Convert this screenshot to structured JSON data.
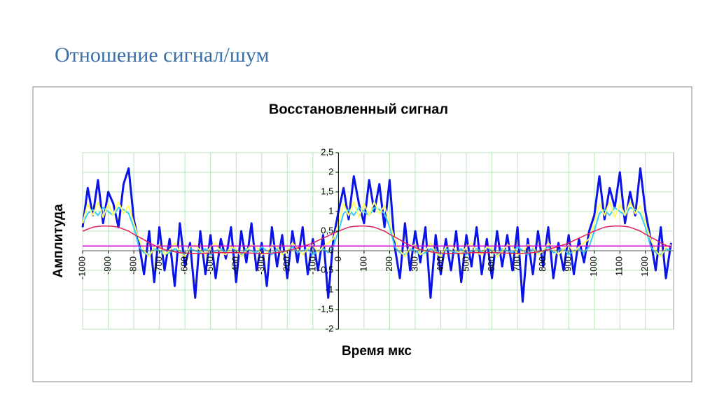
{
  "title": "Отношение сигнал/шум",
  "chart_data": {
    "type": "line",
    "title": "Восстановленный сигнал",
    "x_label": "Время мкс",
    "y_label": "Амплитуда",
    "xlim": [
      -1000,
      1310
    ],
    "ylim": [
      -2,
      2.5
    ],
    "xticks": [
      -1000,
      -900,
      -800,
      -700,
      -600,
      -500,
      -400,
      -300,
      -200,
      -100,
      0,
      100,
      200,
      300,
      400,
      500,
      600,
      700,
      800,
      900,
      1000,
      1100,
      1200
    ],
    "yticks": [
      {
        "value": 2.5,
        "label": "2,5"
      },
      2,
      {
        "value": 1.5,
        "label": "1,5"
      },
      1,
      {
        "value": 0.5,
        "label": "0,5"
      },
      0,
      {
        "value": -0.5,
        "label": "-0,5"
      },
      -1,
      {
        "value": -1.5,
        "label": "-1,5"
      },
      -2
    ],
    "grid": true,
    "x": [
      -1000,
      -980,
      -960,
      -940,
      -920,
      -900,
      -880,
      -860,
      -840,
      -820,
      -800,
      -780,
      -760,
      -740,
      -720,
      -700,
      -680,
      -660,
      -640,
      -620,
      -600,
      -580,
      -560,
      -540,
      -520,
      -500,
      -480,
      -460,
      -440,
      -420,
      -400,
      -380,
      -360,
      -340,
      -320,
      -300,
      -280,
      -260,
      -240,
      -220,
      -200,
      -180,
      -160,
      -140,
      -120,
      -100,
      -80,
      -60,
      -40,
      -20,
      0,
      20,
      40,
      60,
      80,
      100,
      120,
      140,
      160,
      180,
      200,
      220,
      240,
      260,
      280,
      300,
      320,
      340,
      360,
      380,
      400,
      420,
      440,
      460,
      480,
      500,
      520,
      540,
      560,
      580,
      600,
      620,
      640,
      660,
      680,
      700,
      720,
      740,
      760,
      780,
      800,
      820,
      840,
      860,
      880,
      900,
      920,
      940,
      960,
      980,
      1000,
      1020,
      1040,
      1060,
      1080,
      1100,
      1120,
      1140,
      1160,
      1180,
      1200,
      1220,
      1240,
      1260,
      1280,
      1300
    ],
    "series": [
      {
        "color": "#0a14e6",
        "width": 3,
        "values": [
          0.6,
          1.6,
          0.9,
          1.8,
          0.7,
          1.5,
          1.2,
          0.6,
          1.7,
          2.1,
          0.8,
          0.2,
          -0.6,
          0.5,
          -0.8,
          0.6,
          -0.5,
          0.3,
          -0.9,
          0.7,
          -0.4,
          0.2,
          -1.2,
          0.5,
          -0.6,
          0.4,
          -0.7,
          0.3,
          -0.2,
          0.6,
          -0.8,
          0.5,
          -0.3,
          0.7,
          -0.5,
          0.2,
          -0.9,
          0.6,
          -0.4,
          0.4,
          -0.7,
          0.5,
          -0.3,
          0.6,
          -0.6,
          0.3,
          -0.5,
          0.4,
          -1.2,
          0.3,
          1.0,
          1.6,
          0.8,
          1.9,
          1.2,
          0.7,
          1.8,
          1.0,
          1.7,
          0.6,
          1.8,
          0.1,
          -0.7,
          0.7,
          -0.5,
          0.5,
          -0.3,
          0.6,
          -1.2,
          0.4,
          -0.6,
          0.3,
          -0.5,
          0.5,
          -0.8,
          0.4,
          -0.4,
          0.6,
          -0.6,
          0.3,
          -0.7,
          0.5,
          -0.4,
          0.4,
          -0.5,
          0.6,
          -1.3,
          0.3,
          -0.6,
          0.5,
          -0.4,
          0.6,
          -0.7,
          0.2,
          -0.5,
          0.4,
          -0.6,
          0.3,
          -0.3,
          0.5,
          0.9,
          1.9,
          0.8,
          1.6,
          1.1,
          2.0,
          0.7,
          1.5,
          0.9,
          2.1,
          1.0,
          0.3,
          -0.5,
          0.6,
          -0.7,
          0.2
        ]
      },
      {
        "color": "#33ccff",
        "width": 2,
        "values": [
          0.7,
          0.95,
          1.05,
          0.9,
          1.1,
          1.0,
          0.9,
          1.1,
          1.05,
          0.95,
          0.6,
          0.1,
          -0.05,
          -0.1,
          0.05,
          0.0,
          -0.1,
          -0.05,
          0.05,
          0.0,
          -0.1,
          0.05,
          0,
          -0.05,
          0.05,
          -0.1,
          0,
          0.05,
          -0.05,
          0.1,
          0,
          -0.1,
          0.05,
          0,
          -0.05,
          0.1,
          0,
          -0.1,
          0.05,
          -0.05,
          0,
          0.1,
          -0.05,
          0,
          0.05,
          -0.1,
          0,
          0.05,
          -0.05,
          0.1,
          0.5,
          0.95,
          1.05,
          0.9,
          1.1,
          1.0,
          0.9,
          1.1,
          1.05,
          0.95,
          0.6,
          0.1,
          -0.05,
          -0.1,
          0.05,
          0.0,
          -0.1,
          -0.05,
          0.05,
          0.0,
          -0.1,
          0.05,
          0,
          -0.05,
          0.05,
          -0.1,
          0,
          0.05,
          -0.05,
          0.1,
          0,
          -0.1,
          0.05,
          0,
          -0.05,
          0.1,
          0,
          -0.1,
          0.05,
          -0.05,
          0,
          0.1,
          -0.05,
          0,
          0.05,
          -0.1,
          0,
          0.05,
          -0.05,
          0.1,
          0.5,
          0.95,
          1.05,
          0.9,
          1.1,
          1.0,
          0.9,
          1.1,
          1.05,
          0.95,
          0.6,
          0.1,
          -0.05,
          -0.1,
          0.05,
          0.0
        ]
      },
      {
        "color": "#ffff66",
        "width": 2,
        "values": [
          0.7,
          1.2,
          0.9,
          1.25,
          0.85,
          1.2,
          0.9,
          1.25,
          0.95,
          1.15,
          0.7,
          0.3,
          0.0,
          -0.15,
          0.1,
          0.15,
          -0.1,
          0.0,
          0.2,
          -0.05,
          -0.15,
          0.1,
          0.15,
          0,
          -0.1,
          0.1,
          0.2,
          -0.05,
          -0.1,
          0.1,
          0.05,
          -0.15,
          0,
          0.15,
          0.1,
          -0.1,
          -0.05,
          0.15,
          0.1,
          -0.1,
          0,
          0.2,
          0.05,
          -0.1,
          0.05,
          0.15,
          -0.05,
          0.1,
          0.2,
          0.3,
          0.7,
          1.2,
          0.9,
          1.25,
          0.85,
          1.2,
          0.9,
          1.25,
          0.95,
          1.15,
          0.7,
          0.3,
          0.0,
          -0.15,
          0.1,
          0.15,
          -0.1,
          0.0,
          0.2,
          -0.05,
          -0.15,
          0.1,
          0.15,
          0,
          -0.1,
          0.1,
          0.2,
          -0.05,
          -0.1,
          0.1,
          0.05,
          -0.15,
          0,
          0.15,
          0.1,
          -0.1,
          -0.05,
          0.15,
          0.1,
          -0.1,
          0,
          0.2,
          0.05,
          -0.1,
          0.05,
          0.15,
          -0.05,
          0.1,
          0.2,
          0.3,
          0.7,
          1.2,
          0.9,
          1.25,
          0.85,
          1.2,
          0.9,
          1.25,
          0.95,
          1.15,
          0.7,
          0.3,
          0.0,
          -0.15,
          0.1,
          0.15
        ]
      },
      {
        "color": "#e0205a",
        "width": 1.5,
        "values": [
          0.5,
          0.55,
          0.6,
          0.62,
          0.63,
          0.63,
          0.62,
          0.6,
          0.55,
          0.5,
          0.42,
          0.35,
          0.28,
          0.2,
          0.14,
          0.08,
          0.03,
          0,
          -0.03,
          -0.05,
          -0.06,
          -0.07,
          -0.07,
          -0.07,
          -0.06,
          -0.06,
          -0.05,
          -0.05,
          -0.05,
          -0.05,
          -0.05,
          -0.05,
          -0.06,
          -0.06,
          -0.07,
          -0.07,
          -0.07,
          -0.06,
          -0.05,
          -0.03,
          0,
          0.03,
          0.07,
          0.11,
          0.15,
          0.2,
          0.26,
          0.32,
          0.38,
          0.44,
          0.5,
          0.55,
          0.6,
          0.62,
          0.63,
          0.63,
          0.62,
          0.6,
          0.55,
          0.5,
          0.42,
          0.35,
          0.28,
          0.2,
          0.14,
          0.08,
          0.03,
          0,
          -0.03,
          -0.05,
          -0.06,
          -0.07,
          -0.07,
          -0.07,
          -0.06,
          -0.06,
          -0.05,
          -0.05,
          -0.05,
          -0.05,
          -0.05,
          -0.05,
          -0.06,
          -0.06,
          -0.07,
          -0.07,
          -0.07,
          -0.06,
          -0.05,
          -0.03,
          0,
          0.03,
          0.07,
          0.11,
          0.15,
          0.2,
          0.26,
          0.32,
          0.38,
          0.44,
          0.5,
          0.55,
          0.6,
          0.62,
          0.63,
          0.63,
          0.62,
          0.6,
          0.55,
          0.5,
          0.42,
          0.35,
          0.28,
          0.2,
          0.14,
          0.08
        ]
      },
      {
        "color": "#cc00cc",
        "width": 1.5,
        "x": [
          -1000,
          1300
        ],
        "values": [
          0.12,
          0.12
        ]
      }
    ]
  }
}
